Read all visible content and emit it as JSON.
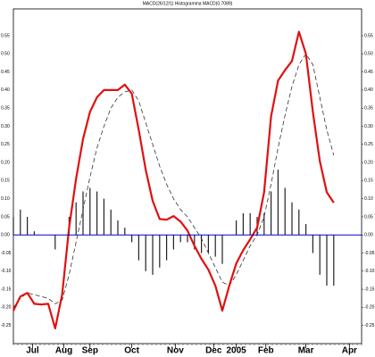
{
  "chart_data": {
    "type": "macd",
    "title": "MACD(26/12/1) Histogramma MACD(0.7089)",
    "x": [
      0,
      4,
      8,
      12,
      16,
      20,
      24,
      28,
      32,
      36,
      40,
      44,
      48,
      52,
      56,
      60,
      64,
      68,
      72,
      76,
      80,
      84,
      88,
      92,
      96,
      100,
      104,
      108,
      112,
      116,
      120,
      124,
      128,
      132,
      136,
      140,
      144,
      148,
      152,
      156,
      160,
      164,
      168,
      172,
      176,
      180,
      184
    ],
    "series": [
      {
        "kind": "line",
        "color": "#e01010",
        "values": [
          -0.209,
          -0.17,
          -0.16,
          -0.19,
          -0.192,
          -0.19,
          -0.258,
          -0.165,
          0.02,
          0.155,
          0.265,
          0.34,
          0.38,
          0.4,
          0.4,
          0.4,
          0.415,
          0.39,
          0.29,
          0.18,
          0.094,
          0.044,
          0.042,
          0.052,
          0.037,
          0.012,
          -0.03,
          -0.066,
          -0.096,
          -0.14,
          -0.209,
          -0.14,
          -0.079,
          -0.042,
          -0.012,
          0.02,
          0.118,
          0.327,
          0.426,
          0.455,
          0.48,
          0.561,
          0.5,
          0.34,
          0.204,
          0.118,
          0.089
        ]
      },
      {
        "kind": "dashed",
        "color": "#333333",
        "values": [
          -0.2,
          -0.175,
          -0.16,
          -0.165,
          -0.17,
          -0.175,
          -0.19,
          -0.18,
          -0.11,
          -0.02,
          0.07,
          0.16,
          0.24,
          0.3,
          0.35,
          0.38,
          0.395,
          0.4,
          0.37,
          0.31,
          0.25,
          0.19,
          0.14,
          0.1,
          0.07,
          0.05,
          0.02,
          -0.01,
          -0.05,
          -0.09,
          -0.13,
          -0.14,
          -0.11,
          -0.07,
          -0.03,
          0.0,
          0.05,
          0.14,
          0.24,
          0.33,
          0.41,
          0.47,
          0.5,
          0.47,
          0.38,
          0.29,
          0.22
        ]
      },
      {
        "kind": "bar",
        "color": "#222222",
        "values": [
          0.05,
          0.07,
          0.05,
          0.01,
          0.0,
          0.0,
          -0.04,
          0.0,
          0.05,
          0.09,
          0.12,
          0.13,
          0.12,
          0.1,
          0.07,
          0.04,
          0.02,
          -0.02,
          -0.07,
          -0.1,
          -0.11,
          -0.09,
          -0.07,
          -0.04,
          -0.02,
          -0.02,
          -0.04,
          -0.05,
          -0.05,
          -0.06,
          -0.08,
          0.0,
          0.04,
          0.06,
          0.06,
          0.05,
          0.06,
          0.12,
          0.18,
          0.13,
          0.09,
          0.07,
          0.03,
          -0.05,
          -0.11,
          -0.14,
          -0.14
        ]
      }
    ],
    "zero_line_color": "#0000cc",
    "xlim": [
      0,
      200
    ],
    "xticks": [
      {
        "value": 11,
        "label": "Jul"
      },
      {
        "value": 29,
        "label": "Aug"
      },
      {
        "value": 44,
        "label": "Sep"
      },
      {
        "value": 68,
        "label": "Oct"
      },
      {
        "value": 93,
        "label": "Nov"
      },
      {
        "value": 115,
        "label": "Dec"
      },
      {
        "value": 128,
        "label": "2005"
      },
      {
        "value": 145,
        "label": "Feb"
      },
      {
        "value": 168,
        "label": "Mar"
      },
      {
        "value": 193,
        "label": "Apr"
      }
    ],
    "ylim": [
      -0.3,
      0.624
    ],
    "yticks": [
      {
        "value": 0.55,
        "label": "0.55"
      },
      {
        "value": 0.5,
        "label": "0.50"
      },
      {
        "value": 0.45,
        "label": "0.45"
      },
      {
        "value": 0.4,
        "label": "0.40"
      },
      {
        "value": 0.35,
        "label": "0.35"
      },
      {
        "value": 0.3,
        "label": "0.30"
      },
      {
        "value": 0.25,
        "label": "0.25"
      },
      {
        "value": 0.2,
        "label": "0.20"
      },
      {
        "value": 0.15,
        "label": "0.15"
      },
      {
        "value": 0.1,
        "label": "0.10"
      },
      {
        "value": 0.05,
        "label": "0.05"
      },
      {
        "value": 0,
        "label": "0.00"
      },
      {
        "value": -0.05,
        "label": "-0.05"
      },
      {
        "value": -0.1,
        "label": "-0.10"
      },
      {
        "value": -0.15,
        "label": "-0.15"
      },
      {
        "value": -0.2,
        "label": "-0.20"
      },
      {
        "value": -0.25,
        "label": "-0.25"
      }
    ]
  }
}
